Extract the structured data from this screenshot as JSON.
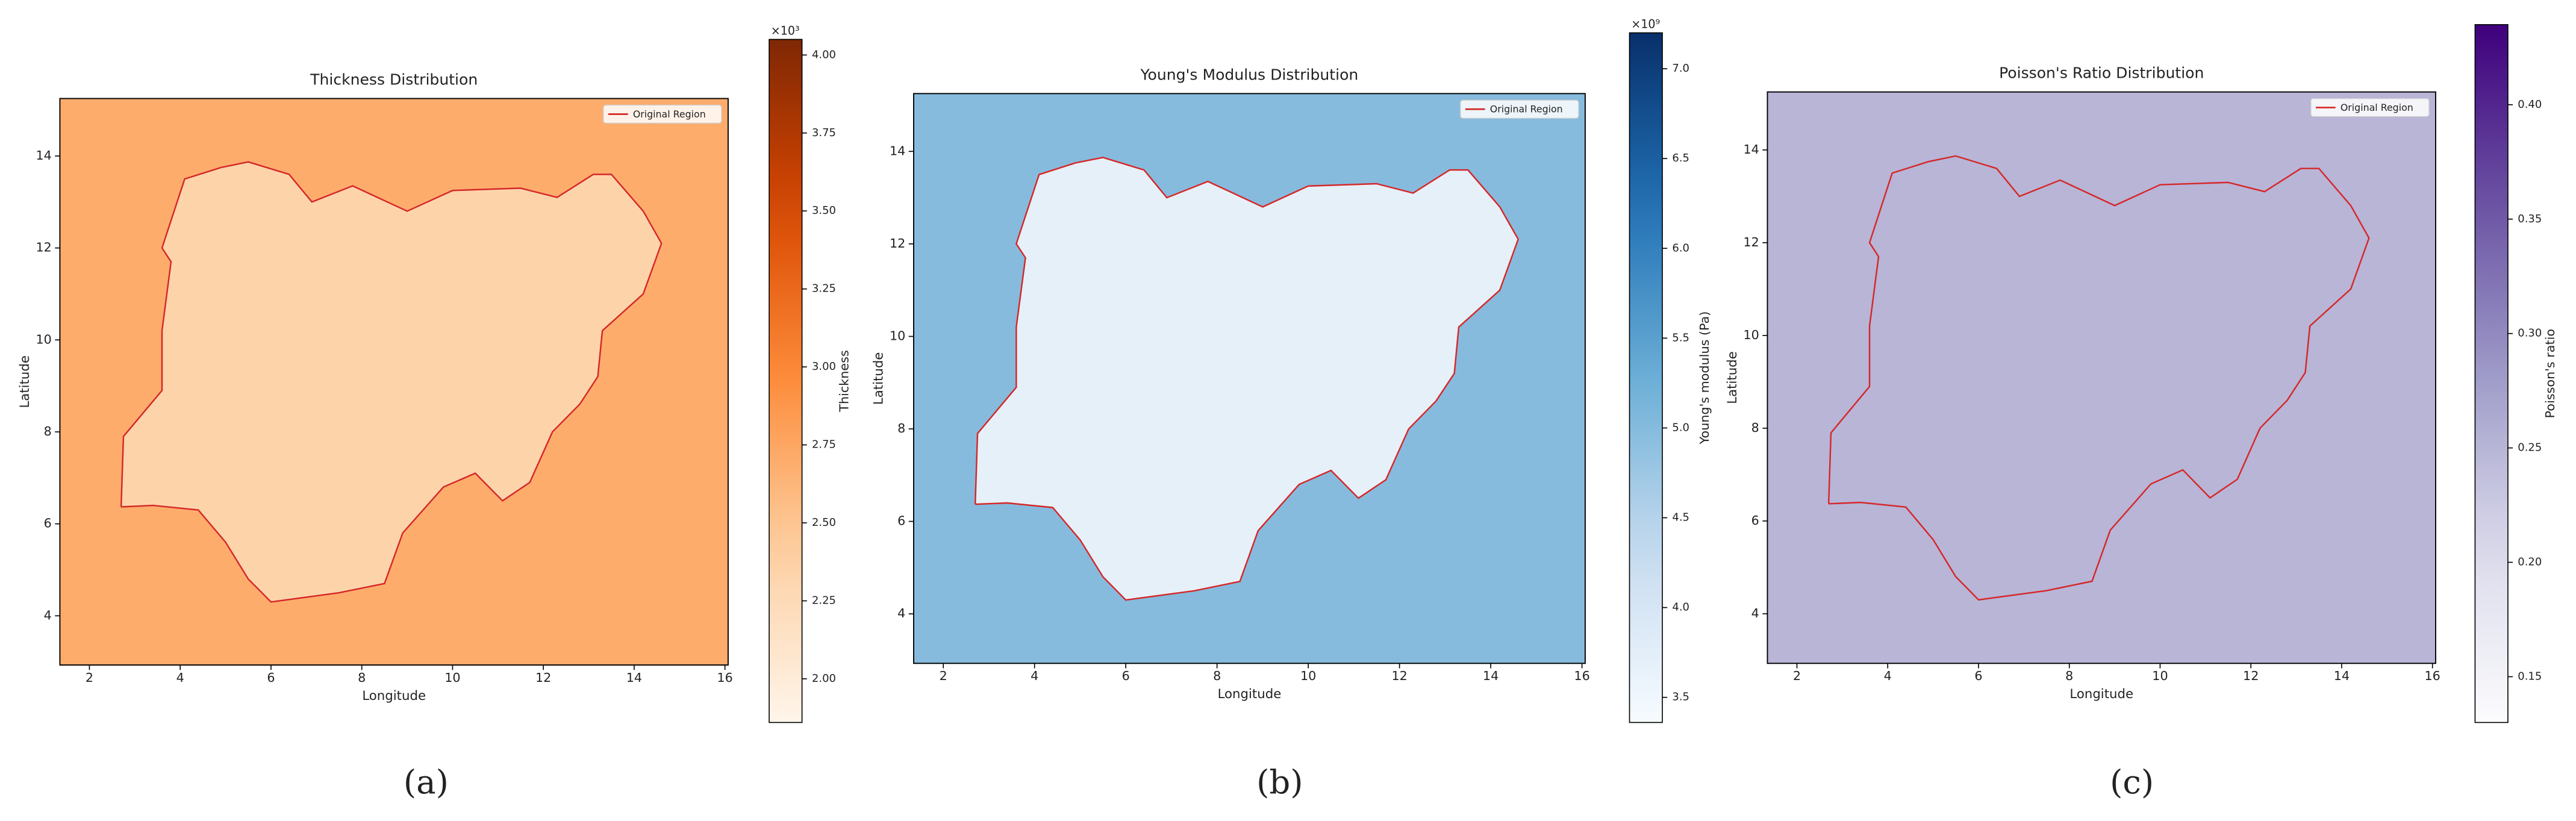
{
  "chart_data": [
    {
      "type": "heatmap",
      "title": "Thickness Distribution",
      "panel_label": "(a)",
      "xlabel": "Longitude",
      "ylabel": "Latitude",
      "colorbar_label": "Thickness",
      "colorbar_offset": "×10³",
      "colormap": "Oranges",
      "xlim": [
        1.35,
        16.07
      ],
      "ylim": [
        2.93,
        15.25
      ],
      "xticks": [
        2,
        4,
        6,
        8,
        10,
        12,
        14,
        16
      ],
      "yticks": [
        4,
        6,
        8,
        10,
        12,
        14
      ],
      "clim": [
        1.86,
        4.05
      ],
      "cticks": [
        {
          "value": 2,
          "label": "2.00"
        },
        2.25,
        {
          "value": 2.5,
          "label": "2.50"
        },
        2.75,
        {
          "value": 3,
          "label": "3.00"
        },
        3.25,
        {
          "value": 3.5,
          "label": "3.50"
        },
        3.75,
        {
          "value": 4,
          "label": "4.00"
        }
      ],
      "outside_value": 2.7,
      "inside_value": 2.35,
      "legend": "upper right",
      "series": [
        {
          "name": "Original Region",
          "color": "#d62728",
          "x": [
            2.7,
            2.75,
            3.6,
            3.6,
            3.8,
            3.6,
            4.1,
            4.9,
            5.5,
            6.4,
            6.9,
            7.8,
            9.0,
            10.0,
            11.5,
            12.3,
            13.1,
            13.5,
            14.2,
            14.6,
            14.2,
            13.3,
            13.2,
            12.8,
            12.2,
            11.7,
            11.1,
            10.5,
            9.8,
            8.9,
            8.5,
            7.5,
            6.0,
            5.5,
            5.0,
            4.4,
            3.4,
            2.7
          ],
          "y": [
            6.37,
            7.9,
            8.9,
            10.2,
            11.7,
            12.0,
            13.5,
            13.75,
            13.87,
            13.6,
            13.0,
            13.35,
            12.8,
            13.25,
            13.3,
            13.1,
            13.6,
            13.6,
            12.8,
            12.1,
            11.0,
            10.2,
            9.2,
            8.6,
            8.0,
            6.9,
            6.5,
            7.1,
            6.8,
            5.8,
            4.7,
            4.5,
            4.3,
            4.8,
            5.6,
            6.3,
            6.4,
            6.37
          ]
        }
      ]
    },
    {
      "type": "heatmap",
      "title": "Young's Modulus Distribution",
      "panel_label": "(b)",
      "xlabel": "Longitude",
      "ylabel": "Latitude",
      "colorbar_label": "Young's modulus (Pa)",
      "colorbar_offset": "×10⁹",
      "colormap": "Blues",
      "xlim": [
        1.35,
        16.07
      ],
      "ylim": [
        2.93,
        15.25
      ],
      "xticks": [
        2,
        4,
        6,
        8,
        10,
        12,
        14,
        16
      ],
      "yticks": [
        4,
        6,
        8,
        10,
        12,
        14
      ],
      "clim": [
        3.36,
        7.2
      ],
      "cticks": [
        3.5,
        {
          "value": 4,
          "label": "4.0"
        },
        4.5,
        {
          "value": 5,
          "label": "5.0"
        },
        5.5,
        {
          "value": 6,
          "label": "6.0"
        },
        6.5,
        {
          "value": 7,
          "label": "7.0"
        }
      ],
      "outside_value": 5.0,
      "inside_value": 3.7,
      "legend": "upper right",
      "series": [
        {
          "name": "Original Region",
          "color": "#d62728",
          "x": [
            2.7,
            2.75,
            3.6,
            3.6,
            3.8,
            3.6,
            4.1,
            4.9,
            5.5,
            6.4,
            6.9,
            7.8,
            9.0,
            10.0,
            11.5,
            12.3,
            13.1,
            13.5,
            14.2,
            14.6,
            14.2,
            13.3,
            13.2,
            12.8,
            12.2,
            11.7,
            11.1,
            10.5,
            9.8,
            8.9,
            8.5,
            7.5,
            6.0,
            5.5,
            5.0,
            4.4,
            3.4,
            2.7
          ],
          "y": [
            6.37,
            7.9,
            8.9,
            10.2,
            11.7,
            12.0,
            13.5,
            13.75,
            13.87,
            13.6,
            13.0,
            13.35,
            12.8,
            13.25,
            13.3,
            13.1,
            13.6,
            13.6,
            12.8,
            12.1,
            11.0,
            10.2,
            9.2,
            8.6,
            8.0,
            6.9,
            6.5,
            7.1,
            6.8,
            5.8,
            4.7,
            4.5,
            4.3,
            4.8,
            5.6,
            6.3,
            6.4,
            6.37
          ]
        }
      ]
    },
    {
      "type": "heatmap",
      "title": "Poisson's Ratio Distribution",
      "panel_label": "(c)",
      "xlabel": "Longitude",
      "ylabel": "Latitude",
      "colorbar_label": "Poisson's ratio",
      "colormap": "Purples",
      "xlim": [
        1.35,
        16.07
      ],
      "ylim": [
        2.93,
        15.25
      ],
      "xticks": [
        2,
        4,
        6,
        8,
        10,
        12,
        14,
        16
      ],
      "yticks": [
        4,
        6,
        8,
        10,
        12,
        14
      ],
      "clim": [
        0.13,
        0.435
      ],
      "cticks": [
        0.15,
        {
          "value": 0.2,
          "label": "0.20"
        },
        0.25,
        {
          "value": 0.3,
          "label": "0.30"
        },
        0.35,
        {
          "value": 0.4,
          "label": "0.40"
        }
      ],
      "outside_value": 0.25,
      "inside_value": 0.25,
      "legend": "upper right",
      "series": [
        {
          "name": "Original Region",
          "color": "#d62728",
          "x": [
            2.7,
            2.75,
            3.6,
            3.6,
            3.8,
            3.6,
            4.1,
            4.9,
            5.5,
            6.4,
            6.9,
            7.8,
            9.0,
            10.0,
            11.5,
            12.3,
            13.1,
            13.5,
            14.2,
            14.6,
            14.2,
            13.3,
            13.2,
            12.8,
            12.2,
            11.7,
            11.1,
            10.5,
            9.8,
            8.9,
            8.5,
            7.5,
            6.0,
            5.5,
            5.0,
            4.4,
            3.4,
            2.7
          ],
          "y": [
            6.37,
            7.9,
            8.9,
            10.2,
            11.7,
            12.0,
            13.5,
            13.75,
            13.87,
            13.6,
            13.0,
            13.35,
            12.8,
            13.25,
            13.3,
            13.1,
            13.6,
            13.6,
            12.8,
            12.1,
            11.0,
            10.2,
            9.2,
            8.6,
            8.0,
            6.9,
            6.5,
            7.1,
            6.8,
            5.8,
            4.7,
            4.5,
            4.3,
            4.8,
            5.6,
            6.3,
            6.4,
            6.37
          ]
        }
      ]
    }
  ]
}
